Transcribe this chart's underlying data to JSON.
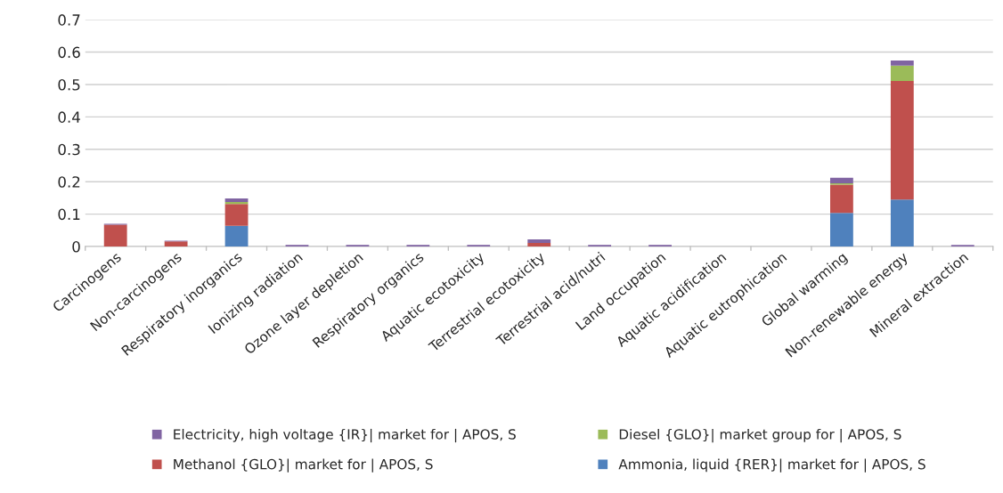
{
  "chart_data": {
    "type": "bar",
    "stacked": true,
    "categories": [
      "Carcinogens",
      "Non-carcinogens",
      "Respiratory inorganics",
      "Ionizing radiation",
      "Ozone layer depletion",
      "Respiratory organics",
      "Aquatic ecotoxicity",
      "Terrestrial ecotoxicity",
      "Terrestrial acid/nutri",
      "Land occupation",
      "Aquatic acidification",
      "Aquatic eutrophication",
      "Global warming",
      "Non-renewable energy",
      "Mineral extraction"
    ],
    "series": [
      {
        "name": "Ammonia, liquid {RER}| market for | APOS, S",
        "color": "#4f81bd",
        "values": [
          0,
          0,
          0.064,
          0,
          0,
          0,
          0,
          0,
          0,
          0,
          0,
          0,
          0.104,
          0.145,
          0
        ]
      },
      {
        "name": "Methanol {GLO}| market for | APOS, S",
        "color": "#c0504d",
        "values": [
          0.067,
          0.016,
          0.067,
          0,
          0,
          0,
          0,
          0.011,
          0,
          0,
          0,
          0,
          0.087,
          0.366,
          0
        ]
      },
      {
        "name": "Diesel {GLO}| market group for | APOS, S",
        "color": "#9bbb59",
        "values": [
          0,
          0,
          0.006,
          0,
          0,
          0,
          0,
          0,
          0,
          0,
          0,
          0,
          0.004,
          0.047,
          0
        ]
      },
      {
        "name": "Electricity, high voltage {IR}| market for | APOS, S",
        "color": "#8064a2",
        "values": [
          0.003,
          0.002,
          0.011,
          0.005,
          0.005,
          0.005,
          0.005,
          0.011,
          0.005,
          0.005,
          0,
          0,
          0.017,
          0.016,
          0.005
        ]
      }
    ],
    "ylim": [
      0,
      0.7
    ],
    "yticks": [
      0,
      0.1,
      0.2,
      0.3,
      0.4,
      0.5,
      0.6,
      0.7
    ],
    "grid": "y",
    "legend": "bottom"
  }
}
